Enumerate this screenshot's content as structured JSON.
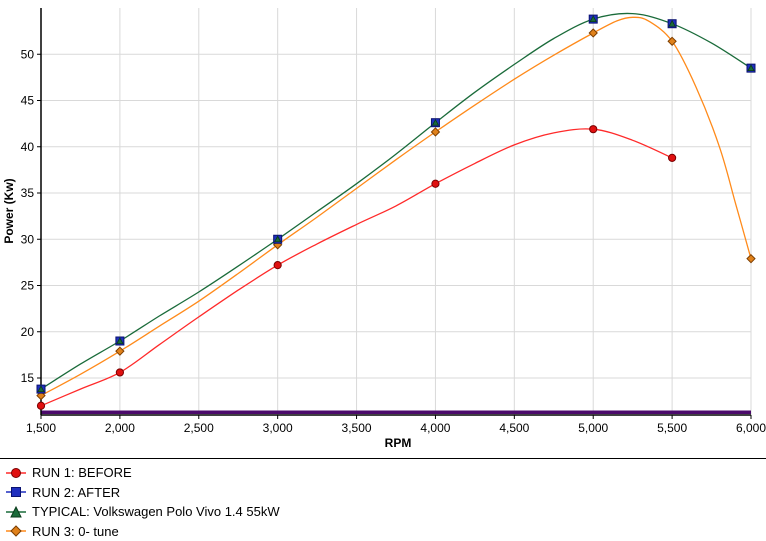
{
  "chart_data": {
    "type": "line",
    "xlabel": "RPM",
    "ylabel": "Power (Kw)",
    "xlim": [
      1500,
      6000
    ],
    "ylim": [
      11,
      55
    ],
    "x_ticks": [
      1500,
      2000,
      2500,
      3000,
      3500,
      4000,
      4500,
      5000,
      5500,
      6000
    ],
    "x_tick_labels": [
      "1,500",
      "2,000",
      "2,500",
      "3,000",
      "3,500",
      "4,000",
      "4,500",
      "5,000",
      "5,500",
      "6,000"
    ],
    "y_ticks": [
      15,
      20,
      25,
      30,
      35,
      40,
      45,
      50
    ],
    "y_tick_labels": [
      "15",
      "20",
      "25",
      "30",
      "35",
      "40",
      "45",
      "50"
    ],
    "grid": true,
    "legend_position": "bottom",
    "baseline": {
      "y": 11.3,
      "color": "#4b0a6b"
    },
    "series": [
      {
        "name": "RUN 1: BEFORE",
        "color": "#ff2a2a",
        "marker": "circle",
        "marker_fill": "#e01010",
        "points": [
          [
            1500,
            12.0
          ],
          [
            2000,
            15.6
          ],
          [
            3000,
            27.2
          ],
          [
            4000,
            36.0
          ],
          [
            5000,
            41.9
          ],
          [
            5500,
            38.8
          ]
        ],
        "curve": [
          [
            1500,
            12.0
          ],
          [
            1750,
            13.8
          ],
          [
            2000,
            15.6
          ],
          [
            2250,
            18.6
          ],
          [
            2500,
            21.6
          ],
          [
            2750,
            24.5
          ],
          [
            3000,
            27.2
          ],
          [
            3250,
            29.5
          ],
          [
            3500,
            31.6
          ],
          [
            3750,
            33.6
          ],
          [
            4000,
            36.0
          ],
          [
            4250,
            38.2
          ],
          [
            4500,
            40.2
          ],
          [
            4750,
            41.5
          ],
          [
            5000,
            41.9
          ],
          [
            5250,
            40.7
          ],
          [
            5500,
            38.8
          ]
        ]
      },
      {
        "name": "RUN 2: AFTER",
        "color": "#1a6b3a",
        "marker": "square",
        "marker_fill": "#1f2fbf",
        "points": [
          [
            1500,
            13.8
          ],
          [
            2000,
            19.0
          ],
          [
            3000,
            30.0
          ],
          [
            4000,
            42.6
          ],
          [
            5000,
            53.8
          ],
          [
            5500,
            53.3
          ],
          [
            6000,
            48.5
          ]
        ],
        "curve": [
          [
            1500,
            13.8
          ],
          [
            1750,
            16.5
          ],
          [
            2000,
            19.0
          ],
          [
            2250,
            21.7
          ],
          [
            2500,
            24.3
          ],
          [
            2750,
            27.1
          ],
          [
            3000,
            30.0
          ],
          [
            3250,
            33.0
          ],
          [
            3500,
            36.0
          ],
          [
            3750,
            39.2
          ],
          [
            4000,
            42.6
          ],
          [
            4250,
            45.9
          ],
          [
            4500,
            48.9
          ],
          [
            4750,
            51.7
          ],
          [
            5000,
            53.8
          ],
          [
            5250,
            54.4
          ],
          [
            5500,
            53.3
          ],
          [
            5750,
            51.2
          ],
          [
            6000,
            48.5
          ]
        ]
      },
      {
        "name": "TYPICAL: Volkswagen Polo Vivo 1.4 55kW",
        "color": "#1a6b3a",
        "marker": "triangle",
        "marker_fill": "#1a6b3a",
        "points": [
          [
            1500,
            13.8
          ],
          [
            2000,
            19.0
          ],
          [
            3000,
            30.0
          ],
          [
            4000,
            42.6
          ],
          [
            5000,
            53.8
          ],
          [
            5500,
            53.3
          ],
          [
            6000,
            48.5
          ]
        ],
        "curve": []
      },
      {
        "name": "RUN 3: 0- tune",
        "color": "#ff8a1a",
        "marker": "diamond",
        "marker_fill": "#e0811a",
        "points": [
          [
            1500,
            13.1
          ],
          [
            2000,
            17.9
          ],
          [
            3000,
            29.4
          ],
          [
            4000,
            41.6
          ],
          [
            5000,
            52.3
          ],
          [
            5500,
            51.4
          ],
          [
            6000,
            27.9
          ]
        ],
        "curve": [
          [
            1500,
            13.1
          ],
          [
            1750,
            15.4
          ],
          [
            2000,
            17.9
          ],
          [
            2250,
            20.6
          ],
          [
            2500,
            23.3
          ],
          [
            2750,
            26.3
          ],
          [
            3000,
            29.4
          ],
          [
            3250,
            32.4
          ],
          [
            3500,
            35.5
          ],
          [
            3750,
            38.6
          ],
          [
            4000,
            41.6
          ],
          [
            4250,
            44.5
          ],
          [
            4500,
            47.3
          ],
          [
            4750,
            49.9
          ],
          [
            5000,
            52.3
          ],
          [
            5150,
            53.6
          ],
          [
            5250,
            54.0
          ],
          [
            5350,
            53.6
          ],
          [
            5500,
            51.4
          ],
          [
            5650,
            46.5
          ],
          [
            5800,
            40.0
          ],
          [
            5900,
            34.0
          ],
          [
            6000,
            27.9
          ]
        ]
      }
    ]
  }
}
